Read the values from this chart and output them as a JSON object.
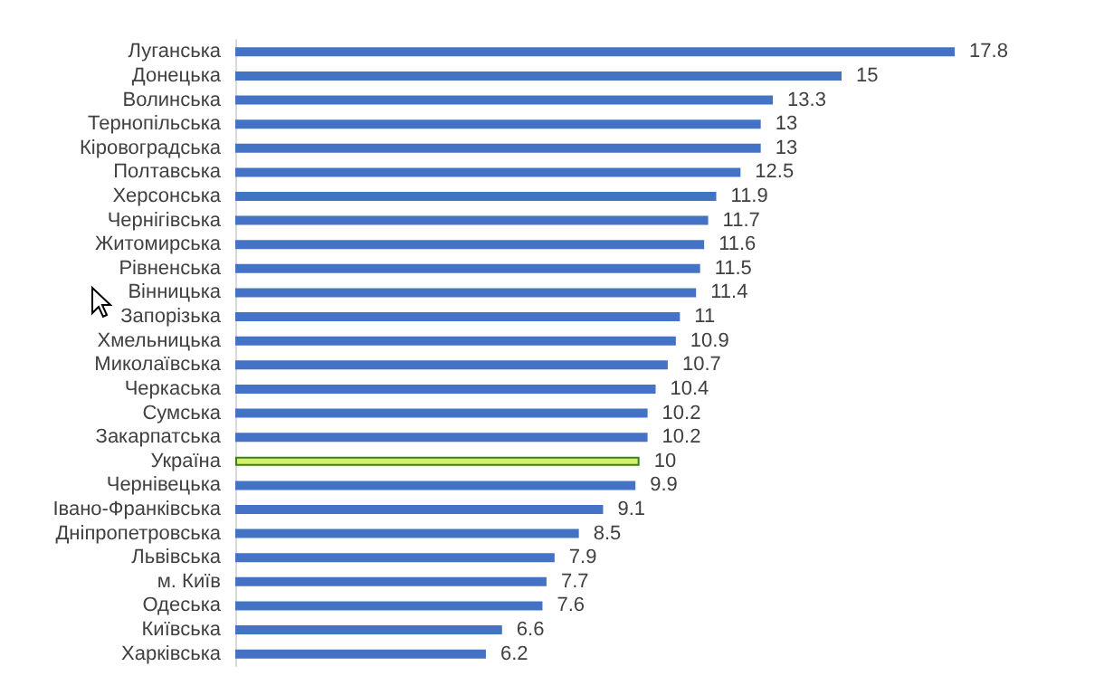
{
  "chart_data": {
    "type": "bar",
    "orientation": "horizontal",
    "categories": [
      "Луганська",
      "Донецька",
      "Волинська",
      "Тернопільська",
      "Кіровоградська",
      "Полтавська",
      "Херсонська",
      "Чернігівська",
      "Житомирська",
      "Рівненська",
      "Вінницька",
      "Запорізька",
      "Хмельницька",
      "Миколаївська",
      "Черкаська",
      "Сумська",
      "Закарпатська",
      "Україна",
      "Чернівецька",
      "Івано-Франківська",
      "Дніпропетровська",
      "Львівська",
      "м. Київ",
      "Одеська",
      "Київська",
      "Харківська"
    ],
    "values": [
      17.8,
      15,
      13.3,
      13,
      13,
      12.5,
      11.9,
      11.7,
      11.6,
      11.5,
      11.4,
      11,
      10.9,
      10.7,
      10.4,
      10.2,
      10.2,
      10,
      9.9,
      9.1,
      8.5,
      7.9,
      7.7,
      7.6,
      6.6,
      6.2
    ],
    "colors": [
      "#4472c4",
      "#4472c4",
      "#4472c4",
      "#4472c4",
      "#4472c4",
      "#4472c4",
      "#4472c4",
      "#4472c4",
      "#4472c4",
      "#4472c4",
      "#4472c4",
      "#4472c4",
      "#4472c4",
      "#4472c4",
      "#4472c4",
      "#4472c4",
      "#4472c4",
      "#d4f06a",
      "#4472c4",
      "#4472c4",
      "#4472c4",
      "#4472c4",
      "#4472c4",
      "#4472c4",
      "#4472c4",
      "#4472c4"
    ],
    "data_labels": true
  }
}
